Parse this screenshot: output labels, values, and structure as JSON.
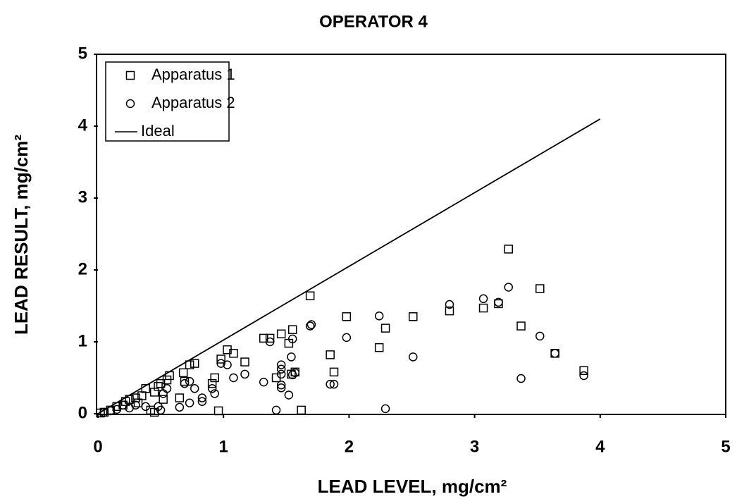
{
  "chart_data": {
    "type": "scatter",
    "title": "OPERATOR 4",
    "x_label": "LEAD LEVEL, mg/cm²",
    "y_label": "LEAD RESULT, mg/cm²",
    "xlim": [
      0,
      5
    ],
    "ylim": [
      0,
      5
    ],
    "xticks": [
      0,
      1,
      2,
      3,
      4,
      5
    ],
    "yticks": [
      0,
      1,
      2,
      3,
      4,
      5
    ],
    "legend": "upper left",
    "series": [
      {
        "name": "Apparatus 1",
        "color": "#000000",
        "marker": "square",
        "x": [
          1.69,
          3.27,
          3.52,
          3.19,
          3.07,
          2.8,
          2.51,
          1.98,
          2.29,
          2.24,
          3.37,
          3.64,
          3.87,
          1.85,
          1.88,
          1.55,
          1.46,
          1.52,
          1.37,
          1.32,
          1.57,
          1.54,
          1.42,
          1.62,
          0.96,
          1.03,
          1.08,
          0.98,
          1.17,
          0.93,
          0.91,
          0.77,
          0.73,
          0.68,
          0.69,
          0.65,
          0.57,
          0.55,
          0.5,
          0.48,
          0.45,
          0.38,
          0.35,
          0.3,
          0.25,
          0.22,
          0.2,
          0.15,
          0.1,
          0.05,
          0.02,
          0.42,
          0.45,
          0.52,
          0.32
        ],
        "values": [
          1.64,
          2.29,
          1.74,
          1.53,
          1.47,
          1.43,
          1.35,
          1.35,
          1.19,
          0.92,
          1.22,
          0.84,
          0.6,
          0.82,
          0.58,
          1.17,
          1.11,
          0.98,
          1.05,
          1.05,
          0.58,
          0.55,
          0.5,
          0.05,
          0.04,
          0.89,
          0.84,
          0.76,
          0.72,
          0.5,
          0.42,
          0.7,
          0.68,
          0.57,
          0.45,
          0.22,
          0.53,
          0.47,
          0.42,
          0.38,
          0.3,
          0.35,
          0.25,
          0.22,
          0.2,
          0.17,
          0.12,
          0.1,
          0.05,
          0.02,
          0.01,
          0.05,
          0.02,
          0.2,
          0.15
        ]
      },
      {
        "name": "Apparatus 2",
        "color": "#000000",
        "marker": "circle",
        "x": [
          3.27,
          3.07,
          2.8,
          3.19,
          2.24,
          1.7,
          1.69,
          1.98,
          3.52,
          3.64,
          3.87,
          3.37,
          2.51,
          2.29,
          1.42,
          1.55,
          1.37,
          1.54,
          1.46,
          1.46,
          1.46,
          1.55,
          1.57,
          1.32,
          1.46,
          1.46,
          1.52,
          1.85,
          1.88,
          1.17,
          1.08,
          1.03,
          0.98,
          0.93,
          0.91,
          0.83,
          0.83,
          0.77,
          0.73,
          0.69,
          0.73,
          0.65,
          0.55,
          0.52,
          0.48,
          0.5,
          0.38,
          0.3,
          0.25,
          0.2,
          0.15,
          0.1,
          0.05
        ],
        "values": [
          1.76,
          1.6,
          1.52,
          1.55,
          1.36,
          1.24,
          1.22,
          1.06,
          1.08,
          0.84,
          0.53,
          0.49,
          0.79,
          0.07,
          0.05,
          1.04,
          1.0,
          0.79,
          0.68,
          0.62,
          0.55,
          0.54,
          0.57,
          0.44,
          0.4,
          0.36,
          0.26,
          0.41,
          0.41,
          0.55,
          0.5,
          0.68,
          0.7,
          0.28,
          0.35,
          0.22,
          0.17,
          0.35,
          0.45,
          0.42,
          0.15,
          0.09,
          0.35,
          0.28,
          0.1,
          0.05,
          0.1,
          0.12,
          0.08,
          0.12,
          0.06,
          0.04,
          0.02
        ]
      },
      {
        "name": "Ideal",
        "color": "#000000",
        "marker": "line",
        "x": [
          0,
          4
        ],
        "values": [
          0,
          4.1
        ]
      }
    ]
  }
}
